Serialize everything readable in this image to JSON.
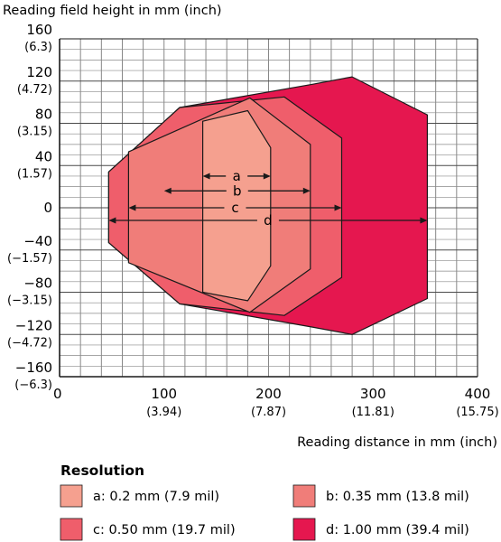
{
  "chart_data": {
    "type": "area",
    "title": "",
    "ylabel": "Reading field height in mm (inch)",
    "xlabel": "Reading distance in mm (inch)",
    "xlim": [
      0,
      400
    ],
    "ylim": [
      -160,
      160
    ],
    "grid": true,
    "x_ticks": [
      {
        "value": 0,
        "label": "0",
        "sub": ""
      },
      {
        "value": 100,
        "label": "100",
        "sub": "(3.94)"
      },
      {
        "value": 200,
        "label": "200",
        "sub": "(7.87)"
      },
      {
        "value": 300,
        "label": "300",
        "sub": "(11.81)"
      },
      {
        "value": 400,
        "label": "400",
        "sub": "(15.75)"
      }
    ],
    "y_ticks": [
      {
        "value": 160,
        "label": "160",
        "sub": "(6.3)"
      },
      {
        "value": 120,
        "label": "120",
        "sub": "(4.72)"
      },
      {
        "value": 80,
        "label": "80",
        "sub": "(3.15)"
      },
      {
        "value": 40,
        "label": "40",
        "sub": "(1.57)"
      },
      {
        "value": 0,
        "label": "0",
        "sub": ""
      },
      {
        "value": -40,
        "label": "-40",
        "sub": "(-1.57)"
      },
      {
        "value": -80,
        "label": "-80",
        "sub": "(-3.15)"
      },
      {
        "value": -120,
        "label": "-120",
        "sub": "(-4.72)"
      },
      {
        "value": -160,
        "label": "-160",
        "sub": "(-6.3)"
      }
    ],
    "series": [
      {
        "key": "d",
        "name": "d: 1.00 mm (39.4 mil)",
        "color": "#e5174f",
        "points": [
          [
            47,
            34
          ],
          [
            115,
            95
          ],
          [
            242,
            117
          ],
          [
            280,
            124
          ],
          [
            352,
            88
          ],
          [
            352,
            -86
          ],
          [
            280,
            -120
          ],
          [
            242,
            -113
          ],
          [
            115,
            -91
          ],
          [
            47,
            -33
          ]
        ],
        "dimension": {
          "label": "d",
          "x_start": 47,
          "x_end": 352,
          "y": -12
        }
      },
      {
        "key": "c",
        "name": "c: 0.50 mm (19.7 mil)",
        "color": "#ef5e6b",
        "points": [
          [
            47,
            34
          ],
          [
            115,
            95
          ],
          [
            215,
            105
          ],
          [
            270,
            66
          ],
          [
            270,
            -66
          ],
          [
            215,
            -102
          ],
          [
            115,
            -91
          ],
          [
            47,
            -33
          ]
        ],
        "dimension": {
          "label": "c",
          "x_start": 66,
          "x_end": 270,
          "y": 0
        }
      },
      {
        "key": "b",
        "name": "b: 0.35 mm (13.8 mil)",
        "color": "#f07d79",
        "points": [
          [
            66,
            53
          ],
          [
            182,
            104
          ],
          [
            240,
            60
          ],
          [
            240,
            -58
          ],
          [
            182,
            -99
          ],
          [
            66,
            -52
          ]
        ],
        "dimension": {
          "label": "b",
          "x_start": 100,
          "x_end": 240,
          "y": 16
        }
      },
      {
        "key": "a",
        "name": "a: 0.2 mm (7.9 mil)",
        "color": "#f5a08f",
        "points": [
          [
            137,
            82
          ],
          [
            180,
            92
          ],
          [
            202,
            57
          ],
          [
            202,
            -55
          ],
          [
            180,
            -88
          ],
          [
            137,
            -80
          ]
        ],
        "dimension": {
          "label": "a",
          "x_start": 137,
          "x_end": 202,
          "y": 30
        }
      }
    ],
    "legend_title": "Resolution",
    "legend": [
      {
        "label": "a: 0.2 mm (7.9 mil)",
        "color": "#f5a08f"
      },
      {
        "label": "b: 0.35 mm (13.8 mil)",
        "color": "#f07d79"
      },
      {
        "label": "c: 0.50 mm (19.7 mil)",
        "color": "#ef5e6b"
      },
      {
        "label": "d: 1.00 mm (39.4 mil)",
        "color": "#e5174f"
      }
    ]
  }
}
